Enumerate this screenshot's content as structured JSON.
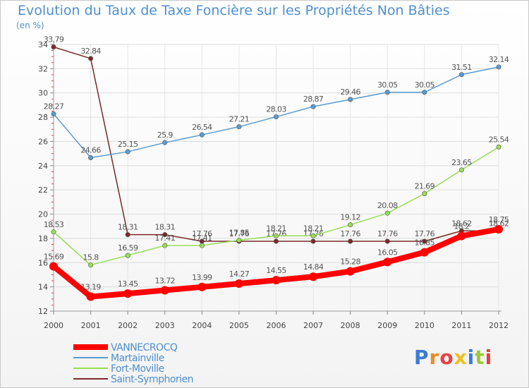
{
  "header": {
    "title": "Evolution du Taux de Taxe Foncière sur les Propriétés Non Bâties",
    "unit": "(en %)"
  },
  "logo": {
    "text": "Proxiti",
    "letter_colors": [
      "#3a7bd5",
      "#f08a24",
      "#e94040",
      "#f0c020",
      "#3a7bd5",
      "#9acd32",
      "#e94040"
    ]
  },
  "chart_data": {
    "type": "line",
    "x": [
      "2000",
      "2001",
      "2002",
      "2003",
      "2004",
      "2005",
      "2006",
      "2007",
      "2008",
      "2009",
      "2010",
      "2011",
      "2012"
    ],
    "ylim": [
      12,
      34
    ],
    "yticks": [
      12,
      14,
      16,
      18,
      20,
      22,
      24,
      26,
      28,
      30,
      32,
      34
    ],
    "grid": true,
    "legend_position": "bottom-left",
    "series": [
      {
        "name": "VANNECROCQ",
        "color": "#ff0000",
        "values": [
          15.69,
          13.19,
          13.45,
          13.72,
          13.99,
          14.27,
          14.55,
          14.84,
          15.28,
          16.05,
          16.85,
          18.2,
          18.75
        ],
        "labels": [
          "15.69",
          "13.19",
          "13.45",
          "13.72",
          "13.99",
          "14.27",
          "14.55",
          "14.84",
          "15.28",
          "16.05",
          "16.85",
          "18.2",
          "18.75"
        ]
      },
      {
        "name": "Martainville",
        "color": "#5b9bd0",
        "values": [
          28.27,
          24.66,
          25.15,
          25.9,
          26.54,
          27.21,
          28.03,
          28.87,
          29.46,
          30.05,
          30.05,
          31.51,
          32.14
        ],
        "labels": [
          "28.27",
          "24.66",
          "25.15",
          "25.9",
          "26.54",
          "27.21",
          "28.03",
          "28.87",
          "29.46",
          "30.05",
          "30.05",
          "31.51",
          "32.14"
        ]
      },
      {
        "name": "Fort-Moville",
        "color": "#99dd55",
        "values": [
          18.53,
          15.8,
          16.59,
          17.41,
          17.41,
          17.85,
          18.21,
          18.21,
          19.12,
          20.08,
          21.69,
          23.65,
          25.54
        ],
        "labels": [
          "18.53",
          "15.8",
          "16.59",
          "17.41",
          "17.41",
          "17.85",
          "18.21",
          "18.21",
          "19.12",
          "20.08",
          "21.69",
          "23.65",
          "25.54"
        ]
      },
      {
        "name": "Saint-Symphorien",
        "color": "#7a2a2a",
        "values": [
          33.79,
          32.84,
          18.31,
          18.31,
          17.76,
          17.76,
          17.76,
          17.76,
          17.76,
          17.76,
          17.76,
          18.62,
          18.62
        ],
        "labels": [
          "33.79",
          "32.84",
          "18.31",
          "18.31",
          "17.76",
          "17.76",
          "17.76",
          "17.76",
          "17.76",
          "17.76",
          "17.76",
          "18.62",
          "18.62"
        ]
      }
    ]
  }
}
